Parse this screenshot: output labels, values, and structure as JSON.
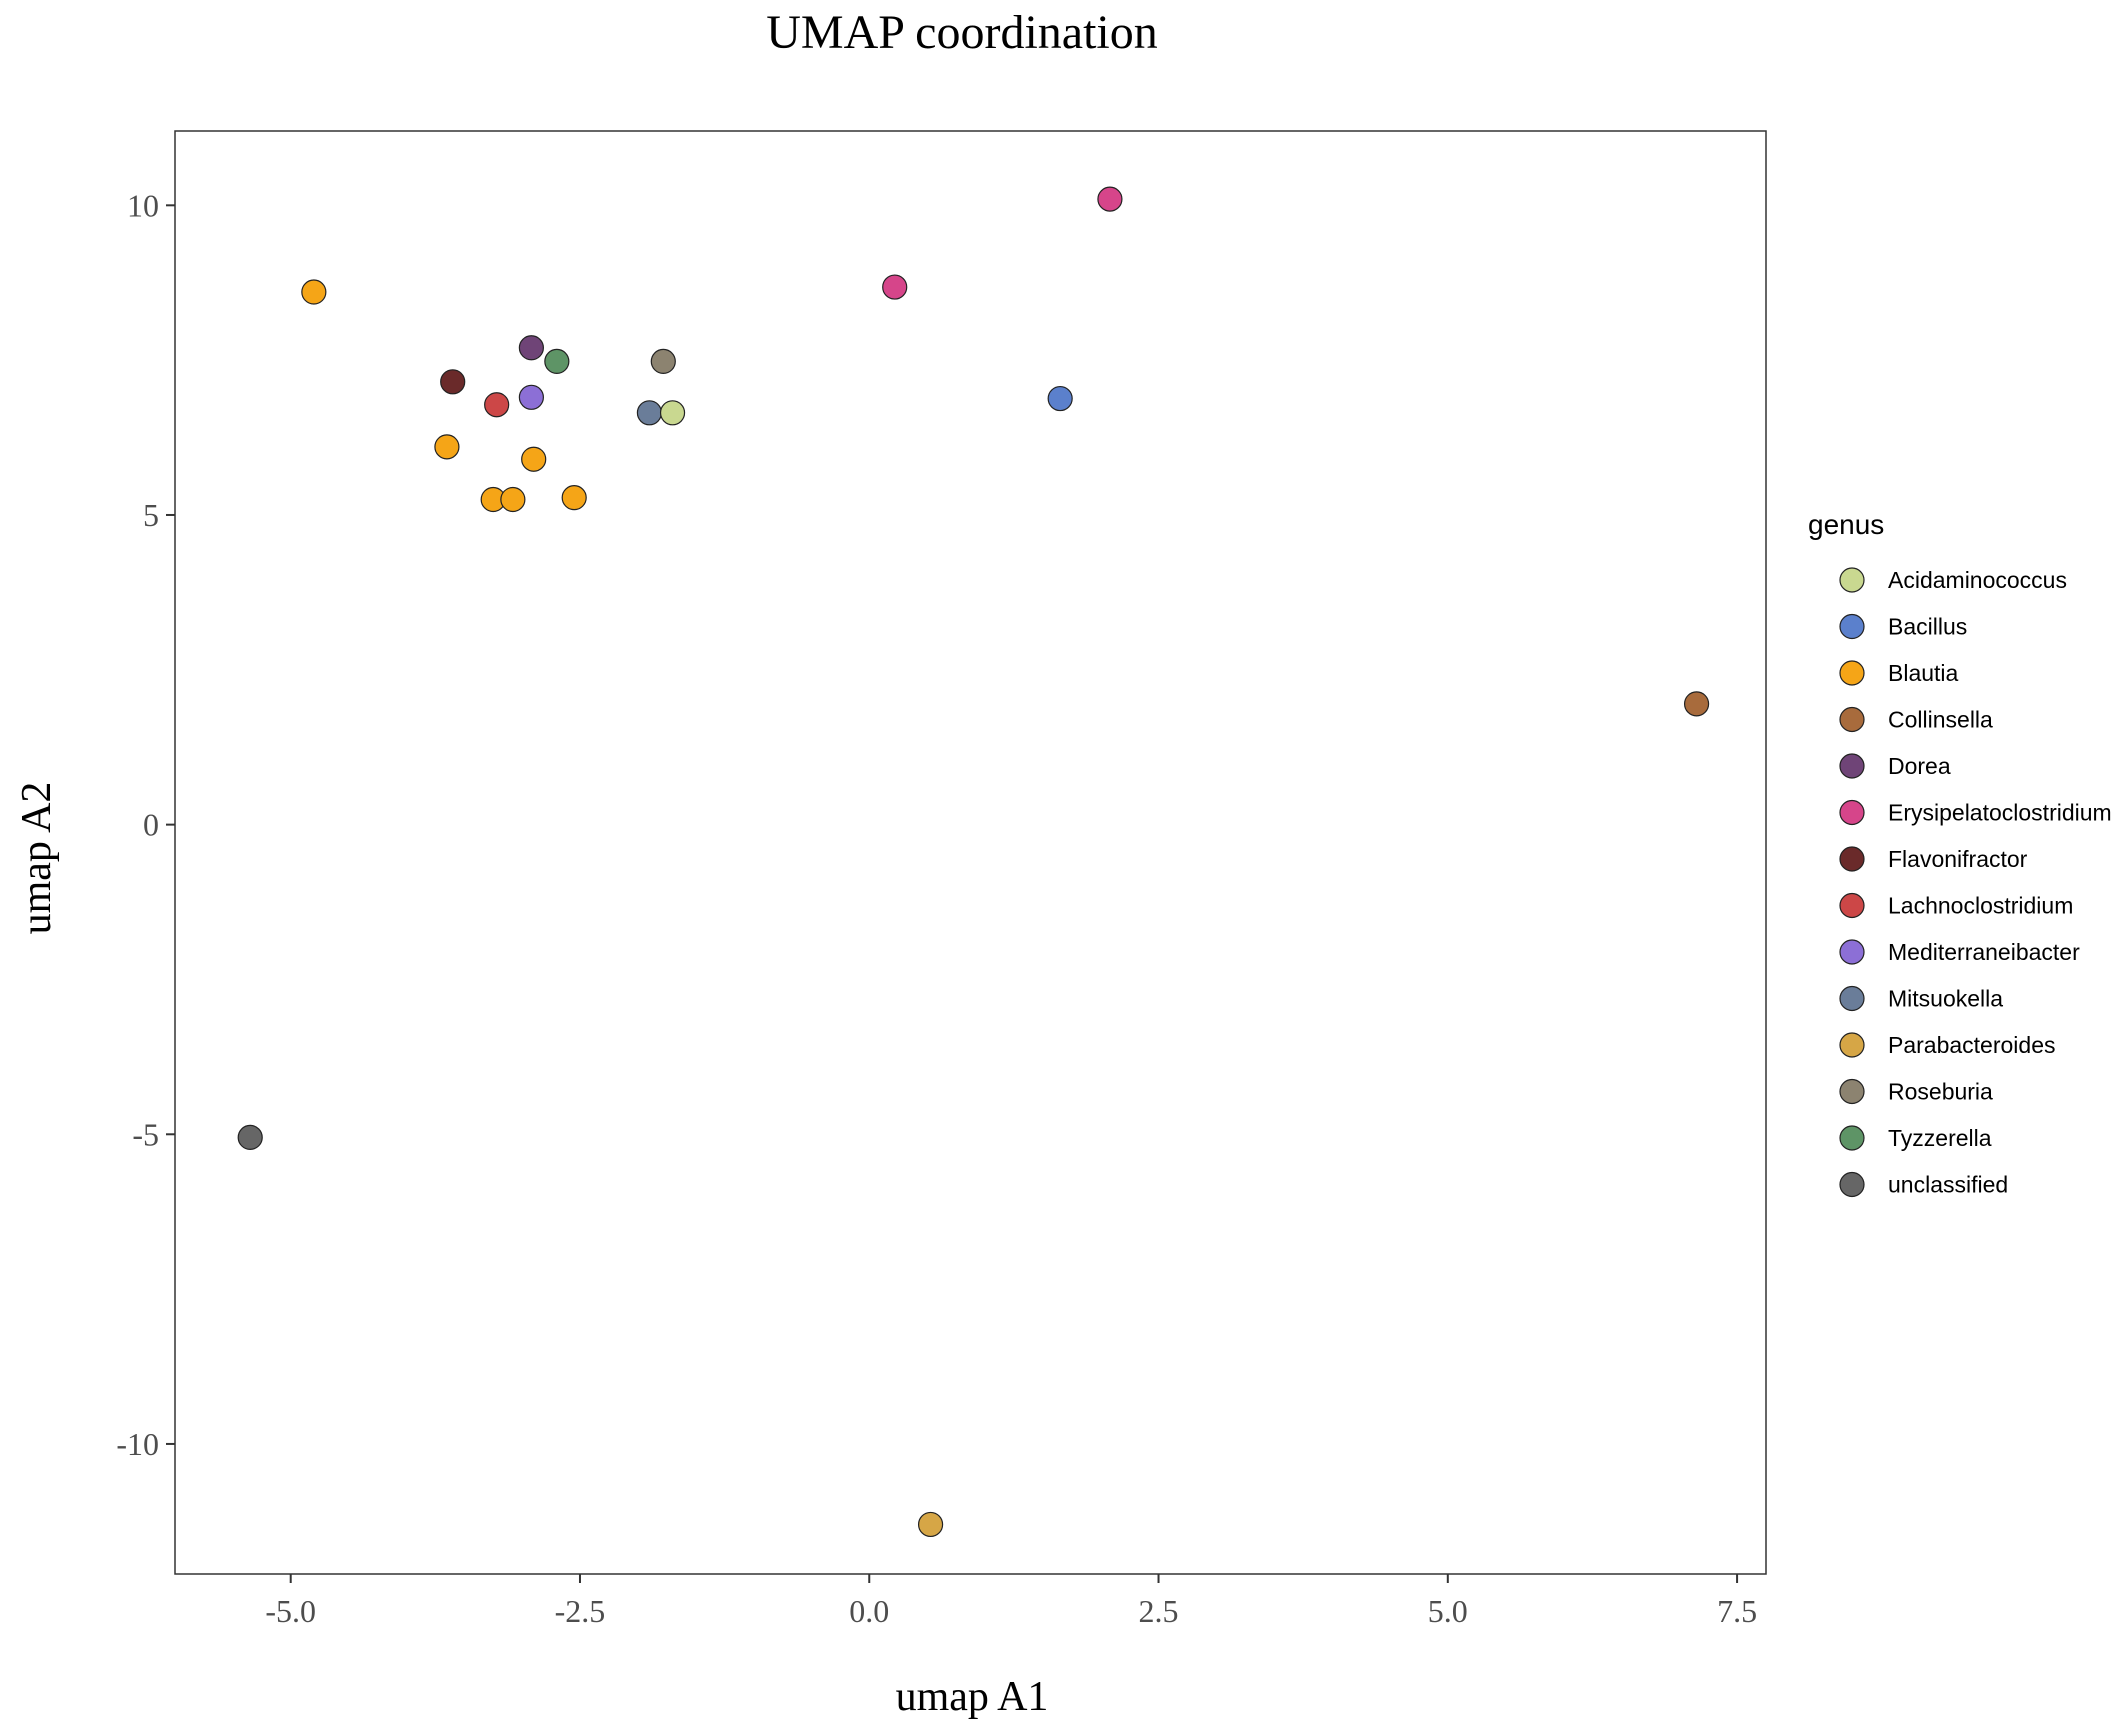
{
  "chart_data": {
    "type": "scatter",
    "title": "UMAP coordination",
    "xlabel": "umap A1",
    "ylabel": "umap A2",
    "xlim": [
      -6.0,
      7.75
    ],
    "ylim": [
      -12.1,
      11.2
    ],
    "x_ticks": [
      -5.0,
      -2.5,
      0.0,
      2.5,
      5.0,
      7.5
    ],
    "x_tick_labels": [
      "-5.0",
      "-2.5",
      "0.0",
      "2.5",
      "5.0",
      "7.5"
    ],
    "y_ticks": [
      10,
      5,
      0,
      -5,
      -10
    ],
    "y_tick_labels": [
      "10",
      "5",
      "0",
      "-5",
      "-10"
    ],
    "grid": false,
    "legend": {
      "title": "genus",
      "placement": "right",
      "entries": [
        {
          "name": "Acidaminococcus",
          "color": "#c9d890"
        },
        {
          "name": "Bacillus",
          "color": "#5b80cc"
        },
        {
          "name": "Blautia",
          "color": "#f5a517"
        },
        {
          "name": "Collinsella",
          "color": "#a86b3c"
        },
        {
          "name": "Dorea",
          "color": "#6f4477"
        },
        {
          "name": "Erysipelatoclostridium",
          "color": "#d6458a"
        },
        {
          "name": "Flavonifractor",
          "color": "#6a2a2a"
        },
        {
          "name": "Lachnoclostridium",
          "color": "#cc4747"
        },
        {
          "name": "Mediterraneibacter",
          "color": "#8c6fd6"
        },
        {
          "name": "Mitsuokella",
          "color": "#6a7d99"
        },
        {
          "name": "Parabacteroides",
          "color": "#d6a646"
        },
        {
          "name": "Roseburia",
          "color": "#8c8370"
        },
        {
          "name": "Tyzzerella",
          "color": "#5e9466"
        },
        {
          "name": "unclassified",
          "color": "#666666"
        }
      ]
    },
    "points": [
      {
        "x": -4.8,
        "y": 8.6,
        "genus": "Blautia"
      },
      {
        "x": -3.65,
        "y": 6.1,
        "genus": "Blautia"
      },
      {
        "x": -3.25,
        "y": 5.25,
        "genus": "Blautia"
      },
      {
        "x": -3.08,
        "y": 5.25,
        "genus": "Blautia"
      },
      {
        "x": -2.9,
        "y": 5.9,
        "genus": "Blautia"
      },
      {
        "x": -2.55,
        "y": 5.28,
        "genus": "Blautia"
      },
      {
        "x": -3.6,
        "y": 7.15,
        "genus": "Flavonifractor"
      },
      {
        "x": -3.22,
        "y": 6.78,
        "genus": "Lachnoclostridium"
      },
      {
        "x": -2.92,
        "y": 7.7,
        "genus": "Dorea"
      },
      {
        "x": -2.92,
        "y": 6.9,
        "genus": "Mediterraneibacter"
      },
      {
        "x": -2.7,
        "y": 7.48,
        "genus": "Tyzzerella"
      },
      {
        "x": -1.78,
        "y": 7.48,
        "genus": "Roseburia"
      },
      {
        "x": -1.9,
        "y": 6.65,
        "genus": "Mitsuokella"
      },
      {
        "x": -1.7,
        "y": 6.65,
        "genus": "Acidaminococcus"
      },
      {
        "x": 0.22,
        "y": 8.68,
        "genus": "Erysipelatoclostridium"
      },
      {
        "x": 2.08,
        "y": 10.1,
        "genus": "Erysipelatoclostridium"
      },
      {
        "x": 1.65,
        "y": 6.88,
        "genus": "Bacillus"
      },
      {
        "x": 7.15,
        "y": 1.95,
        "genus": "Collinsella"
      },
      {
        "x": 0.53,
        "y": -11.3,
        "genus": "Parabacteroides"
      },
      {
        "x": -5.35,
        "y": -5.05,
        "genus": "unclassified"
      }
    ]
  }
}
